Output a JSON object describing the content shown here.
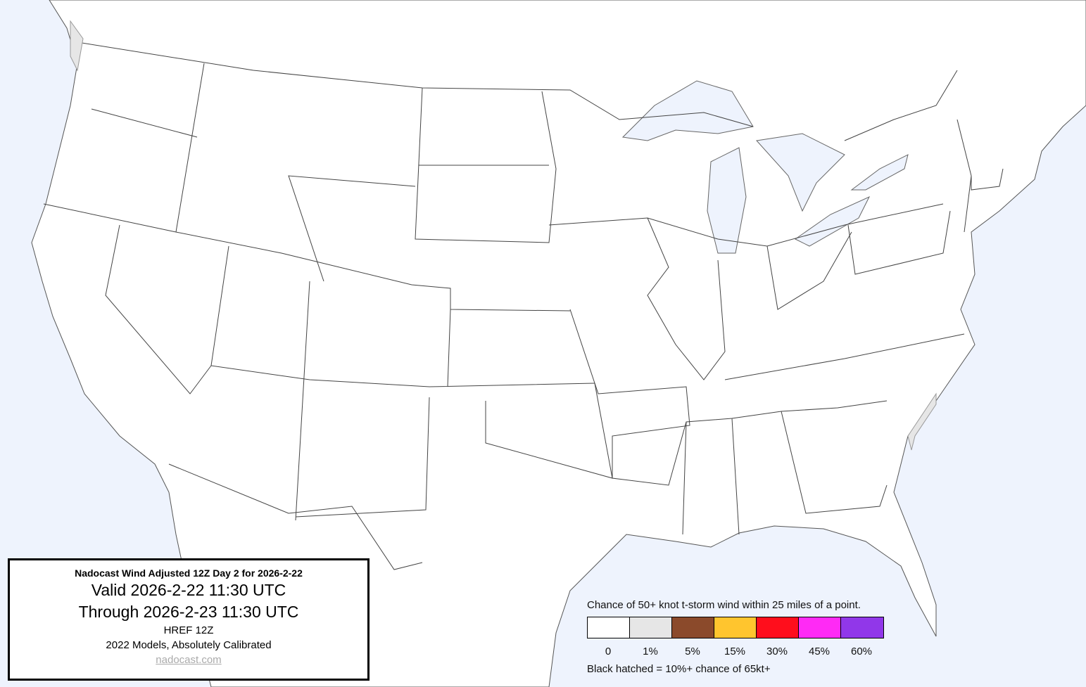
{
  "map": {
    "land_color": "#ffffff",
    "water_color": "#eef3fd",
    "border_color": "#333333",
    "risk_1pct_color": "#e6e6e6"
  },
  "infobox": {
    "title": "Nadocast Wind Adjusted 12Z Day 2 for 2026-2-22",
    "valid": "Valid 2026-2-22 11:30 UTC",
    "through": "Through 2026-2-23 11:30 UTC",
    "model": "HREF 12Z",
    "calibration": "2022 Models, Absolutely Calibrated",
    "link": "nadocast.com"
  },
  "legend": {
    "title": "Chance of 50+ knot t-storm wind within 25 miles of a point.",
    "bins": [
      {
        "label": "0",
        "color": "#ffffff"
      },
      {
        "label": "1%",
        "color": "#e6e6e6"
      },
      {
        "label": "5%",
        "color": "#8b4a2b"
      },
      {
        "label": "15%",
        "color": "#ffc52e"
      },
      {
        "label": "30%",
        "color": "#ff0e1c"
      },
      {
        "label": "45%",
        "color": "#ff2af5"
      },
      {
        "label": "60%",
        "color": "#9137e9"
      }
    ],
    "note": "Black hatched = 10%+ chance of 65kt+"
  }
}
